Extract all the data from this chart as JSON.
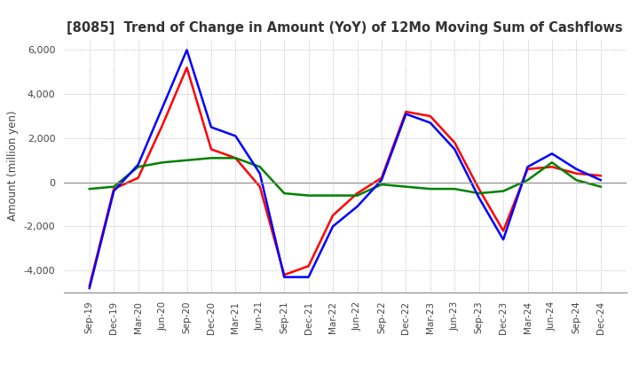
{
  "title": "[8085]  Trend of Change in Amount (YoY) of 12Mo Moving Sum of Cashflows",
  "ylabel": "Amount (million yen)",
  "ylim": [
    -5000,
    6500
  ],
  "yticks": [
    -4000,
    -2000,
    0,
    2000,
    4000,
    6000
  ],
  "x_labels": [
    "Sep-19",
    "Dec-19",
    "Mar-20",
    "Jun-20",
    "Sep-20",
    "Dec-20",
    "Mar-21",
    "Jun-21",
    "Sep-21",
    "Dec-21",
    "Mar-22",
    "Jun-22",
    "Sep-22",
    "Dec-22",
    "Mar-23",
    "Jun-23",
    "Sep-23",
    "Dec-23",
    "Mar-24",
    "Jun-24",
    "Sep-24",
    "Dec-24"
  ],
  "operating": [
    -4700,
    -300,
    200,
    2600,
    5200,
    1500,
    1100,
    -200,
    -4200,
    -3800,
    -1500,
    -500,
    200,
    3200,
    3000,
    1800,
    -300,
    -2200,
    600,
    700,
    400,
    300
  ],
  "investing": [
    -300,
    -200,
    700,
    900,
    1000,
    1100,
    1100,
    700,
    -500,
    -600,
    -600,
    -600,
    -100,
    -200,
    -300,
    -300,
    -500,
    -400,
    100,
    900,
    100,
    -200
  ],
  "free": [
    -4800,
    -400,
    800,
    3400,
    6000,
    2500,
    2100,
    400,
    -4300,
    -4300,
    -2000,
    -1100,
    100,
    3100,
    2700,
    1500,
    -700,
    -2600,
    700,
    1300,
    600,
    100
  ],
  "op_color": "#ff0000",
  "inv_color": "#008000",
  "free_color": "#0000ff",
  "bg_color": "#ffffff",
  "grid_color": "#aaaaaa"
}
